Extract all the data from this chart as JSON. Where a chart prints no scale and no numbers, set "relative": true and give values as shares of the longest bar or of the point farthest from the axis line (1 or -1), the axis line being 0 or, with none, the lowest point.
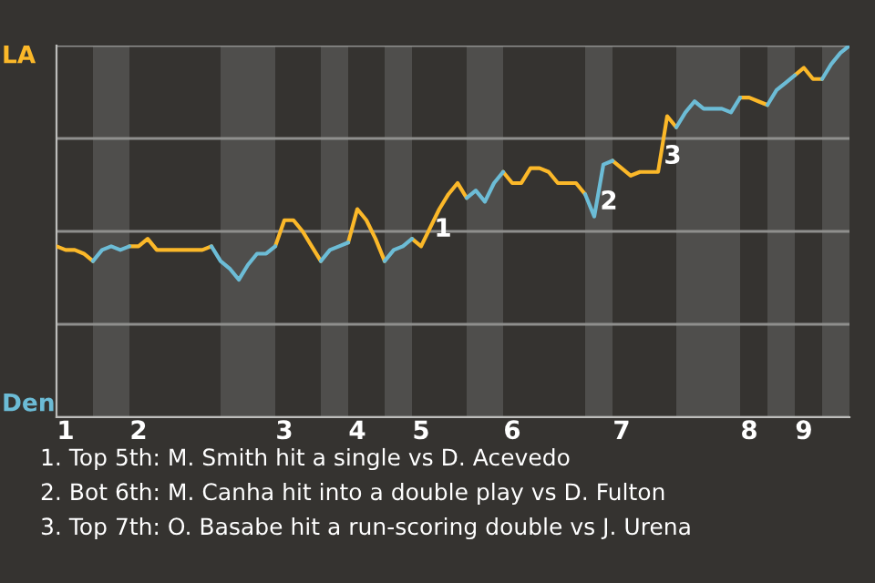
{
  "chart_data": {
    "type": "line",
    "relative": true,
    "categories": [
      null,
      "1",
      null,
      null,
      null,
      null,
      null,
      null,
      null,
      "2",
      null,
      null,
      null,
      null,
      null,
      null,
      null,
      null,
      null,
      null,
      null,
      null,
      null,
      null,
      null,
      "3",
      null,
      null,
      null,
      null,
      null,
      null,
      null,
      "4",
      null,
      null,
      null,
      null,
      null,
      null,
      "5",
      null,
      null,
      null,
      null,
      null,
      null,
      null,
      null,
      null,
      "6",
      null,
      null,
      null,
      null,
      null,
      null,
      null,
      null,
      null,
      null,
      null,
      "7",
      null,
      null,
      null,
      null,
      null,
      null,
      null,
      null,
      null,
      null,
      null,
      null,
      null,
      "8",
      null,
      null,
      null,
      null,
      null,
      "9",
      null,
      null,
      null,
      null,
      null
    ],
    "grid": "y",
    "marker": "none",
    "line_style": "solid",
    "series": [
      {
        "color": "#fbb829",
        "values": [
          0.46,
          0.45,
          0.45,
          0.44,
          0.42,
          null,
          null,
          null,
          0.46,
          0.46,
          0.48,
          0.45,
          0.45,
          0.45,
          0.45,
          0.45,
          0.45,
          0.46,
          null,
          null,
          null,
          null,
          null,
          null,
          0.46,
          0.53,
          0.53,
          0.5,
          0.46,
          0.42,
          null,
          null,
          0.47,
          0.56,
          0.53,
          0.48,
          0.42,
          null,
          null,
          0.48,
          0.46,
          0.51,
          0.56,
          0.6,
          0.63,
          0.59,
          null,
          null,
          null,
          0.66,
          0.63,
          0.63,
          0.67,
          0.67,
          0.66,
          0.63,
          0.63,
          0.63,
          0.6,
          null,
          null,
          0.69,
          0.67,
          0.65,
          0.66,
          0.66,
          0.66,
          0.81,
          0.78,
          null,
          null,
          null,
          null,
          null,
          null,
          0.86,
          0.86,
          0.85,
          0.84,
          null,
          null,
          0.92,
          0.94,
          0.91,
          0.91,
          null,
          null,
          null
        ]
      },
      {
        "color": "#6cbcd6",
        "values": [
          null,
          null,
          null,
          null,
          0.42,
          0.45,
          0.46,
          0.45,
          0.46,
          null,
          null,
          null,
          null,
          null,
          null,
          null,
          null,
          0.46,
          0.42,
          0.4,
          0.37,
          0.41,
          0.44,
          0.44,
          0.46,
          null,
          null,
          null,
          null,
          0.42,
          0.45,
          0.46,
          0.47,
          null,
          null,
          null,
          0.42,
          0.45,
          0.46,
          0.48,
          null,
          null,
          null,
          null,
          null,
          0.59,
          0.61,
          0.58,
          0.63,
          0.66,
          null,
          null,
          null,
          null,
          null,
          null,
          null,
          null,
          0.6,
          0.54,
          0.68,
          0.69,
          null,
          null,
          null,
          null,
          null,
          null,
          0.78,
          0.82,
          0.85,
          0.83,
          0.83,
          0.83,
          0.82,
          0.86,
          null,
          null,
          0.84,
          0.88,
          0.9,
          0.92,
          null,
          null,
          0.91,
          0.95,
          0.98,
          1.0
        ]
      }
    ],
    "annotations": [
      "LA",
      "Den",
      "1",
      "2",
      "3",
      "1. Top 5th: M. Smith hit a single vs D. Acevedo",
      "2. Bot 6th: M. Canha hit into a double play vs D. Fulton",
      "3. Top 7th: O. Basabe hit a run-scoring double vs J. Urena"
    ]
  }
}
